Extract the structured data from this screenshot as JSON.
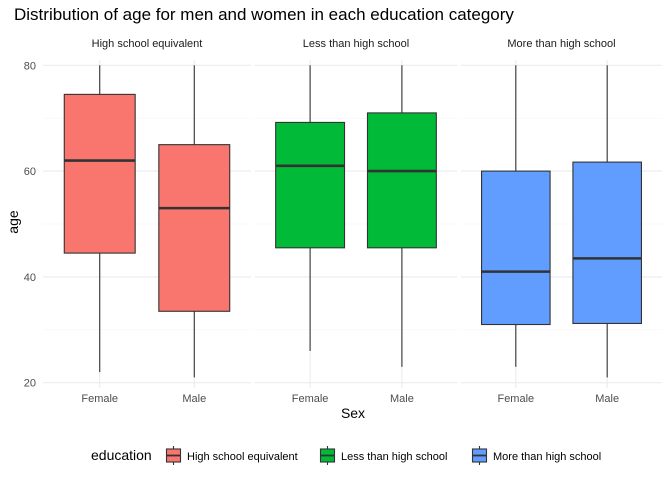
{
  "chart_data": {
    "type": "boxplot",
    "title": "Distribution of age for men and women in each education category",
    "xlabel": "Sex",
    "ylabel": "age",
    "ylim": [
      19,
      81
    ],
    "yticks": [
      20,
      40,
      60,
      80
    ],
    "categories": [
      "Female",
      "Male"
    ],
    "grid": true,
    "legend": {
      "title": "education",
      "position": "bottom",
      "entries": [
        "High school equivalent",
        "Less than high school",
        "More than high school"
      ]
    },
    "facets": [
      {
        "label": "High school equivalent",
        "color": "#F8766D",
        "boxes": [
          {
            "category": "Female",
            "min": 22,
            "q1": 44.5,
            "median": 62,
            "q3": 74.5,
            "max": 80
          },
          {
            "category": "Male",
            "min": 21,
            "q1": 33.5,
            "median": 53,
            "q3": 65,
            "max": 80
          }
        ]
      },
      {
        "label": "Less than high school",
        "color": "#00BA38",
        "boxes": [
          {
            "category": "Female",
            "min": 26,
            "q1": 45.5,
            "median": 61,
            "q3": 69.2,
            "max": 80
          },
          {
            "category": "Male",
            "min": 23,
            "q1": 45.5,
            "median": 60,
            "q3": 71,
            "max": 80
          }
        ]
      },
      {
        "label": "More than high school",
        "color": "#619CFF",
        "boxes": [
          {
            "category": "Female",
            "min": 23,
            "q1": 31,
            "median": 41,
            "q3": 60,
            "max": 80
          },
          {
            "category": "Male",
            "min": 21,
            "q1": 31.2,
            "median": 43.5,
            "q3": 61.7,
            "max": 80
          }
        ]
      }
    ]
  }
}
